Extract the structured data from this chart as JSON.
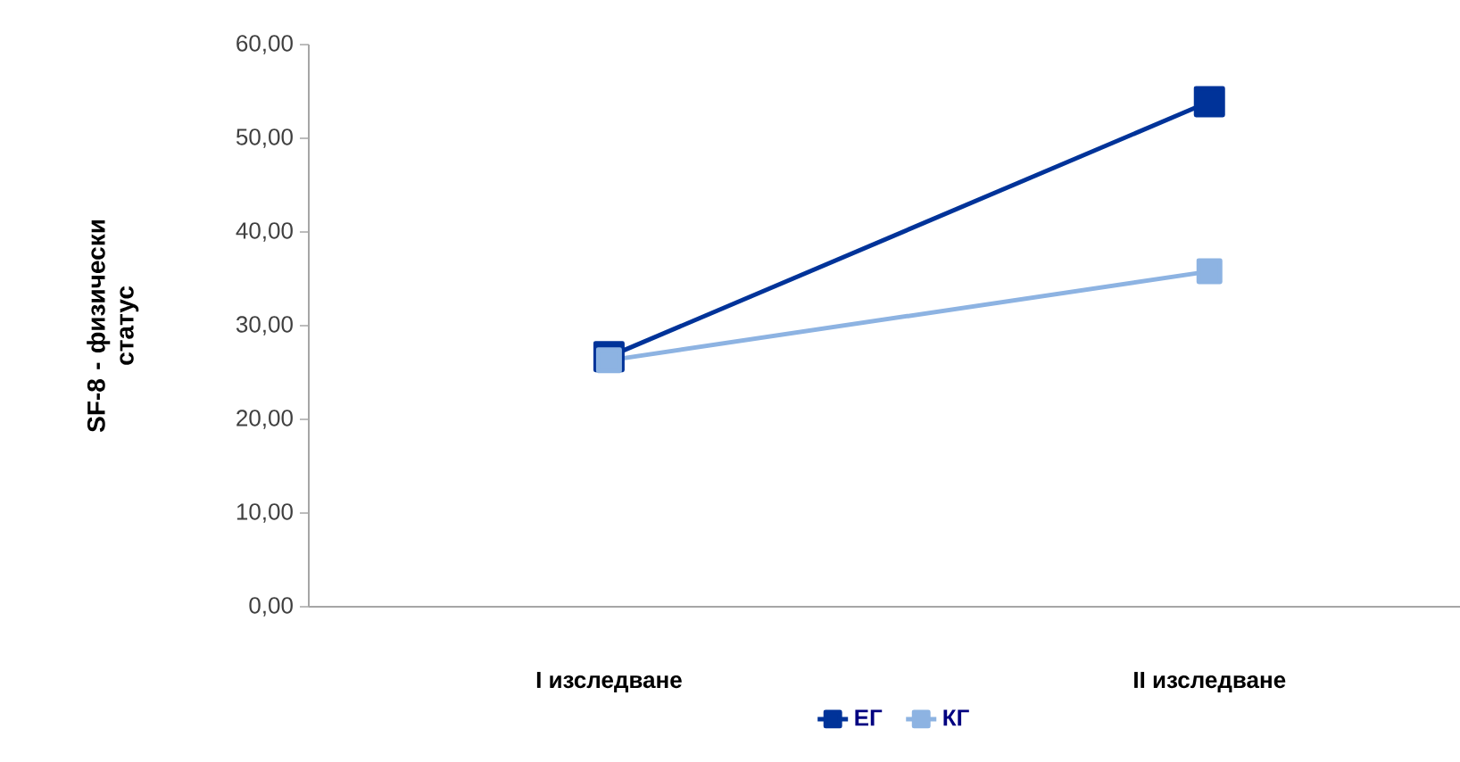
{
  "chart_data": {
    "type": "line",
    "ylabel": "SF-8 - физически статус",
    "categories": [
      "I изследване",
      "II изследване"
    ],
    "series": [
      {
        "name": "ЕГ",
        "color": "#003399",
        "values": [
          26.7,
          53.9
        ]
      },
      {
        "name": "КГ",
        "color": "#8db3e2",
        "values": [
          26.3,
          35.8
        ]
      }
    ],
    "ylim": [
      0,
      60
    ],
    "yticks": [
      {
        "value": 0,
        "label": "0,00"
      },
      {
        "value": 10,
        "label": "10,00"
      },
      {
        "value": 20,
        "label": "20,00"
      },
      {
        "value": 30,
        "label": "30,00"
      },
      {
        "value": 40,
        "label": "40,00"
      },
      {
        "value": 50,
        "label": "50,00"
      },
      {
        "value": 60,
        "label": "60,00"
      }
    ],
    "grid": false,
    "legend": "bottom",
    "marker": "square",
    "line_style": "solid"
  }
}
